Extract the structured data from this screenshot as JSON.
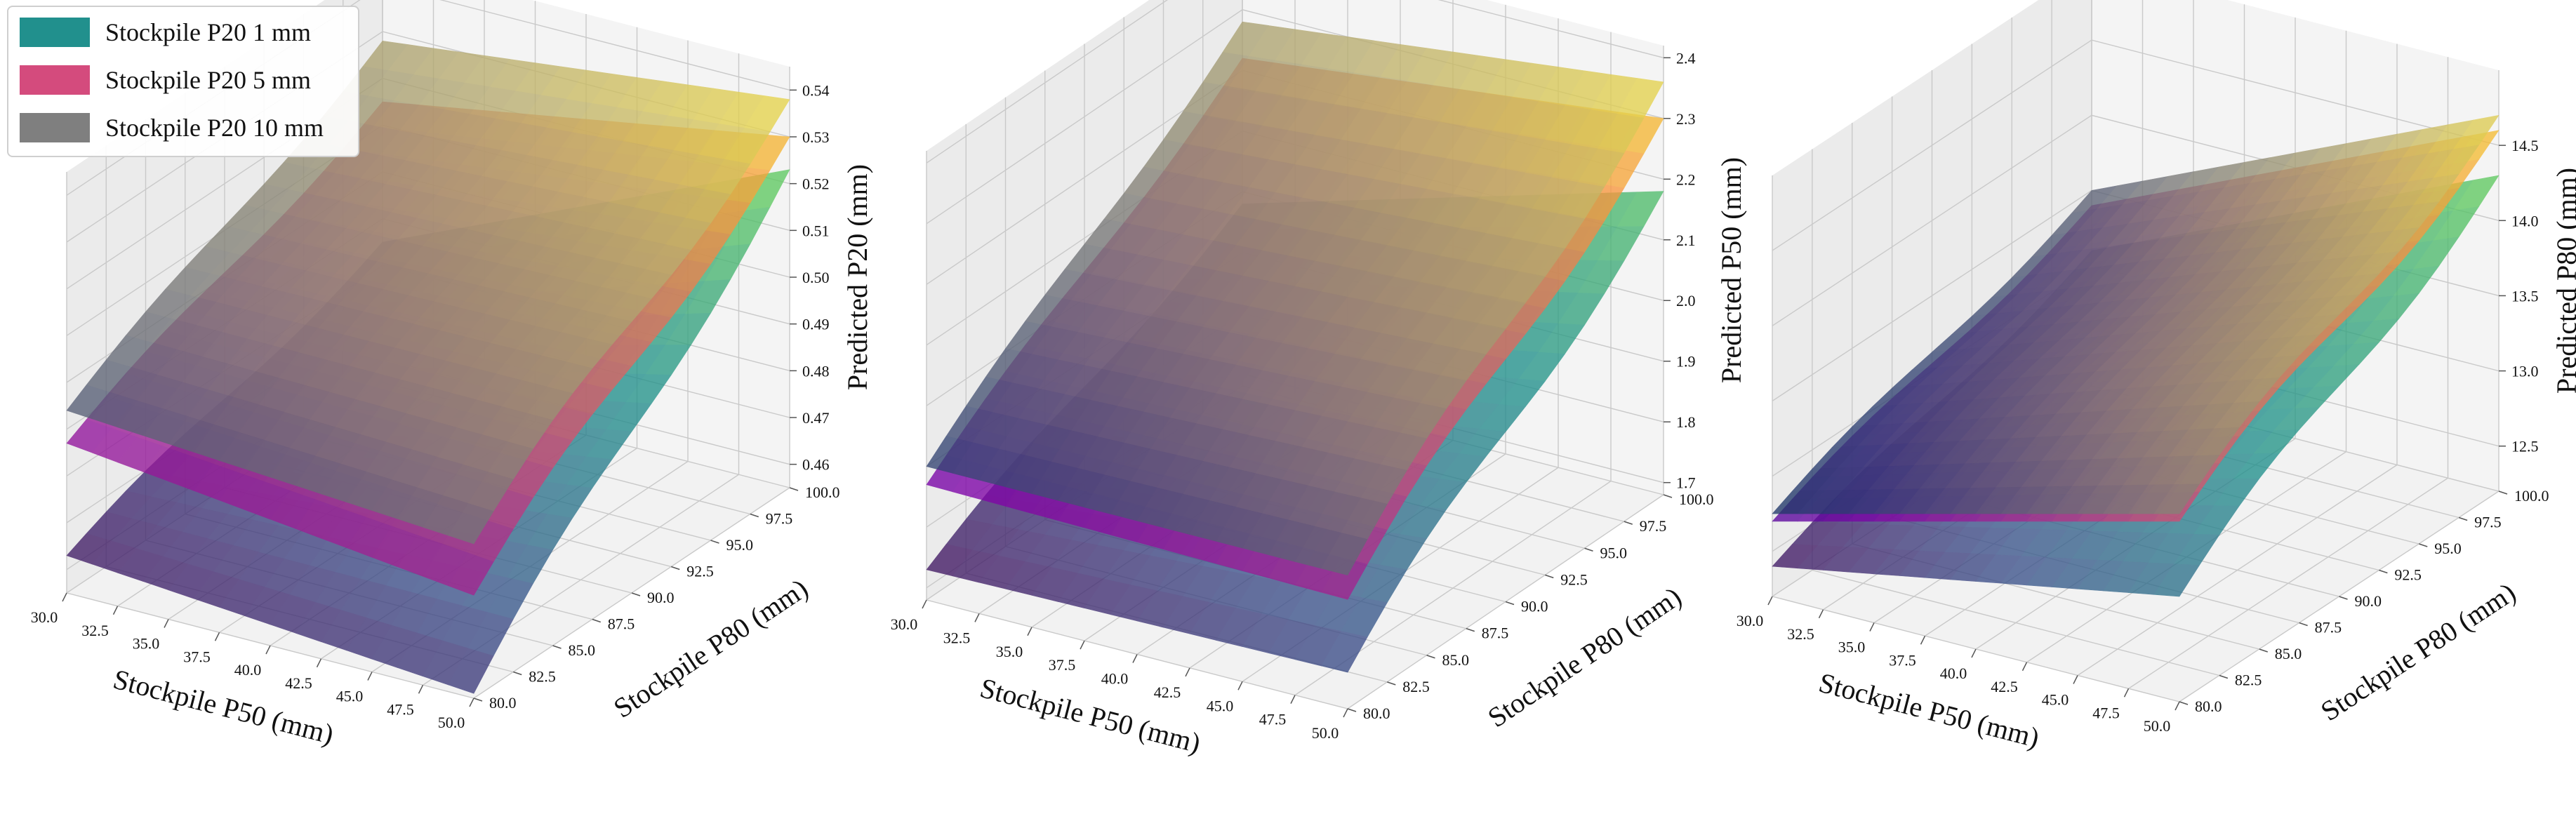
{
  "legend": {
    "items": [
      {
        "label": "Stockpile P20 1 mm",
        "color": "#21908d"
      },
      {
        "label": "Stockpile P20 5 mm",
        "color": "#d44b7d"
      },
      {
        "label": "Stockpile P20 10 mm",
        "color": "#7f7f7f"
      }
    ]
  },
  "chart_data": [
    {
      "type": "surface3d",
      "xlabel": "Stockpile P50 (mm)",
      "ylabel": "Stockpile P80 (mm)",
      "zlabel": "Predicted P20 (mm)",
      "xticks": [
        "30.0",
        "32.5",
        "35.0",
        "37.5",
        "40.0",
        "42.5",
        "45.0",
        "47.5",
        "50.0"
      ],
      "yticks": [
        "80.0",
        "82.5",
        "85.0",
        "87.5",
        "90.0",
        "92.5",
        "95.0",
        "97.5",
        "100.0"
      ],
      "zticks": [
        "0.46",
        "0.47",
        "0.48",
        "0.49",
        "0.50",
        "0.51",
        "0.52",
        "0.53",
        "0.54"
      ],
      "xlim": [
        30,
        50
      ],
      "ylim": [
        80,
        100
      ],
      "zlim": [
        0.455,
        0.545
      ],
      "series": [
        {
          "colormap": "viridis",
          "corners": {
            "x30_y80": 0.463,
            "x50_y80": 0.456,
            "x30_y100": 0.485,
            "x50_y100": 0.523
          }
        },
        {
          "colormap": "plasma",
          "corners": {
            "x30_y80": 0.487,
            "x50_y80": 0.477,
            "x30_y100": 0.515,
            "x50_y100": 0.53
          }
        },
        {
          "colormap": "cividis",
          "corners": {
            "x30_y80": 0.494,
            "x50_y80": 0.488,
            "x30_y100": 0.528,
            "x50_y100": 0.538
          }
        }
      ]
    },
    {
      "type": "surface3d",
      "xlabel": "Stockpile P50 (mm)",
      "ylabel": "Stockpile P80 (mm)",
      "zlabel": "Predicted P50 (mm)",
      "xticks": [
        "30.0",
        "32.5",
        "35.0",
        "37.5",
        "40.0",
        "42.5",
        "45.0",
        "47.5",
        "50.0"
      ],
      "yticks": [
        "80.0",
        "82.5",
        "85.0",
        "87.5",
        "90.0",
        "92.5",
        "95.0",
        "97.5",
        "100.0"
      ],
      "zticks": [
        "1.7",
        "1.8",
        "1.9",
        "2.0",
        "2.1",
        "2.2",
        "2.3",
        "2.4"
      ],
      "xlim": [
        30,
        50
      ],
      "ylim": [
        80,
        100
      ],
      "zlim": [
        1.68,
        2.42
      ],
      "series": [
        {
          "colormap": "viridis",
          "corners": {
            "x30_y80": 1.73,
            "x50_y80": 1.74,
            "x30_y100": 1.98,
            "x50_y100": 2.18
          }
        },
        {
          "colormap": "plasma",
          "corners": {
            "x30_y80": 1.87,
            "x50_y80": 1.86,
            "x30_y100": 2.22,
            "x50_y100": 2.3
          }
        },
        {
          "colormap": "cividis",
          "corners": {
            "x30_y80": 1.9,
            "x50_y80": 1.9,
            "x30_y100": 2.28,
            "x50_y100": 2.36
          }
        }
      ]
    },
    {
      "type": "surface3d",
      "xlabel": "Stockpile P50 (mm)",
      "ylabel": "Stockpile P80 (mm)",
      "zlabel": "Predicted P80 (mm)",
      "xticks": [
        "30.0",
        "32.5",
        "35.0",
        "37.5",
        "40.0",
        "42.5",
        "45.0",
        "47.5",
        "50.0"
      ],
      "yticks": [
        "80.0",
        "82.5",
        "85.0",
        "87.5",
        "90.0",
        "92.5",
        "95.0",
        "97.5",
        "100.0"
      ],
      "zticks": [
        "12.5",
        "13.0",
        "13.5",
        "14.0",
        "14.5"
      ],
      "xlim": [
        30,
        50
      ],
      "ylim": [
        80,
        100
      ],
      "zlim": [
        12.2,
        15.0
      ],
      "series": [
        {
          "colormap": "viridis",
          "corners": {
            "x30_y80": 12.4,
            "x50_y80": 12.9,
            "x30_y100": 13.1,
            "x50_y100": 14.3
          }
        },
        {
          "colormap": "plasma",
          "corners": {
            "x30_y80": 12.7,
            "x50_y80": 13.4,
            "x30_y100": 13.4,
            "x50_y100": 14.6
          }
        },
        {
          "colormap": "cividis",
          "corners": {
            "x30_y80": 12.75,
            "x50_y80": 13.45,
            "x30_y100": 13.5,
            "x50_y100": 14.7
          }
        }
      ]
    }
  ]
}
